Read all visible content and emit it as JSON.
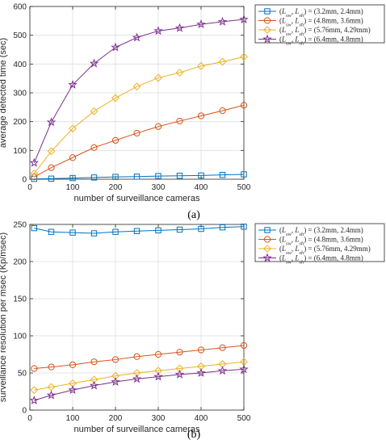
{
  "chart_data": [
    {
      "type": "line",
      "caption": "(a)",
      "xlabel": "number of surveillance cameras",
      "ylabel": "average detected time (sec)",
      "xlim": [
        0,
        500
      ],
      "ylim": [
        0,
        600
      ],
      "xticks": [
        "0",
        "100",
        "200",
        "300",
        "400",
        "500"
      ],
      "yticks": [
        "0",
        "100",
        "200",
        "300",
        "400",
        "500",
        "600"
      ],
      "grid": true,
      "legend_position": "top-right, outside plot",
      "x": [
        10,
        50,
        100,
        150,
        200,
        250,
        300,
        350,
        400,
        450,
        500
      ],
      "series": [
        {
          "name": "(Lsw, Lsh) = (3.2mm, 2.4mm)",
          "marker": "square",
          "color": "#0072BD",
          "values": [
            1,
            2,
            4,
            6,
            8,
            9,
            11,
            12,
            13,
            15,
            17
          ]
        },
        {
          "name": "(Lsw, Lsh) = (4.8mm, 3.6mm)",
          "marker": "circle",
          "color": "#D95319",
          "values": [
            8,
            40,
            75,
            110,
            135,
            160,
            183,
            202,
            220,
            238,
            257
          ]
        },
        {
          "name": "(Lsw, Lsh) = (5.76mm, 4.29mm)",
          "marker": "diamond",
          "color": "#EDB120",
          "values": [
            20,
            97,
            176,
            236,
            282,
            322,
            352,
            370,
            393,
            408,
            425
          ]
        },
        {
          "name": "(Lsw, Lsh) = (6.4mm, 4.8mm)",
          "marker": "star",
          "color": "#7E2F8E",
          "values": [
            57,
            198,
            328,
            402,
            458,
            492,
            515,
            525,
            538,
            547,
            555
          ]
        }
      ]
    },
    {
      "type": "line",
      "caption": "(b)",
      "xlabel": "number of surveillance cameras",
      "ylabel": "surveillance resolution per msec (Kp/msec)",
      "xlim": [
        0,
        500
      ],
      "ylim": [
        0,
        250
      ],
      "xticks": [
        "0",
        "100",
        "200",
        "300",
        "400",
        "500"
      ],
      "yticks": [
        "0",
        "50",
        "100",
        "150",
        "200",
        "250"
      ],
      "grid": true,
      "legend_position": "top-right, outside plot",
      "x": [
        10,
        50,
        100,
        150,
        200,
        250,
        300,
        350,
        400,
        450,
        500
      ],
      "series": [
        {
          "name": "(Lsw, Lsh) = (3.2mm, 2.4mm)",
          "marker": "square",
          "color": "#0072BD",
          "values": [
            245,
            240,
            239,
            238,
            240,
            241,
            242,
            243,
            244,
            246,
            247
          ]
        },
        {
          "name": "(Lsw, Lsh) = (4.8mm, 3.6mm)",
          "marker": "circle",
          "color": "#D95319",
          "values": [
            56,
            58,
            61,
            65,
            68,
            72,
            75,
            78,
            81,
            84,
            87
          ]
        },
        {
          "name": "(Lsw, Lsh) = (5.76mm, 4.29mm)",
          "marker": "diamond",
          "color": "#EDB120",
          "values": [
            27,
            31,
            36,
            41,
            46,
            50,
            53,
            56,
            59,
            62,
            65
          ]
        },
        {
          "name": "(Lsw, Lsh) = (6.4mm, 4.8mm)",
          "marker": "star",
          "color": "#7E2F8E",
          "values": [
            13,
            20,
            27,
            33,
            38,
            42,
            45,
            48,
            50,
            53,
            55
          ]
        }
      ]
    }
  ],
  "legend_entries": [
    {
      "prefix": "(",
      "v1": "L",
      "s1": "sw",
      "sep": ", ",
      "v2": "L",
      "s2": "sh",
      "rest": ") = (3.2mm, 2.4mm)"
    },
    {
      "prefix": "(",
      "v1": "L",
      "s1": "sw",
      "sep": ", ",
      "v2": "L",
      "s2": "sh",
      "rest": ") = (4.8mm, 3.6mm)"
    },
    {
      "prefix": "(",
      "v1": "L",
      "s1": "sw",
      "sep": ", ",
      "v2": "L",
      "s2": "sh",
      "rest": ") = (5.76mm, 4.29mm)"
    },
    {
      "prefix": "(",
      "v1": "L",
      "s1": "sw",
      "sep": ", ",
      "v2": "L",
      "s2": "sh",
      "rest": ") = (6.4mm, 4.8mm)"
    }
  ]
}
